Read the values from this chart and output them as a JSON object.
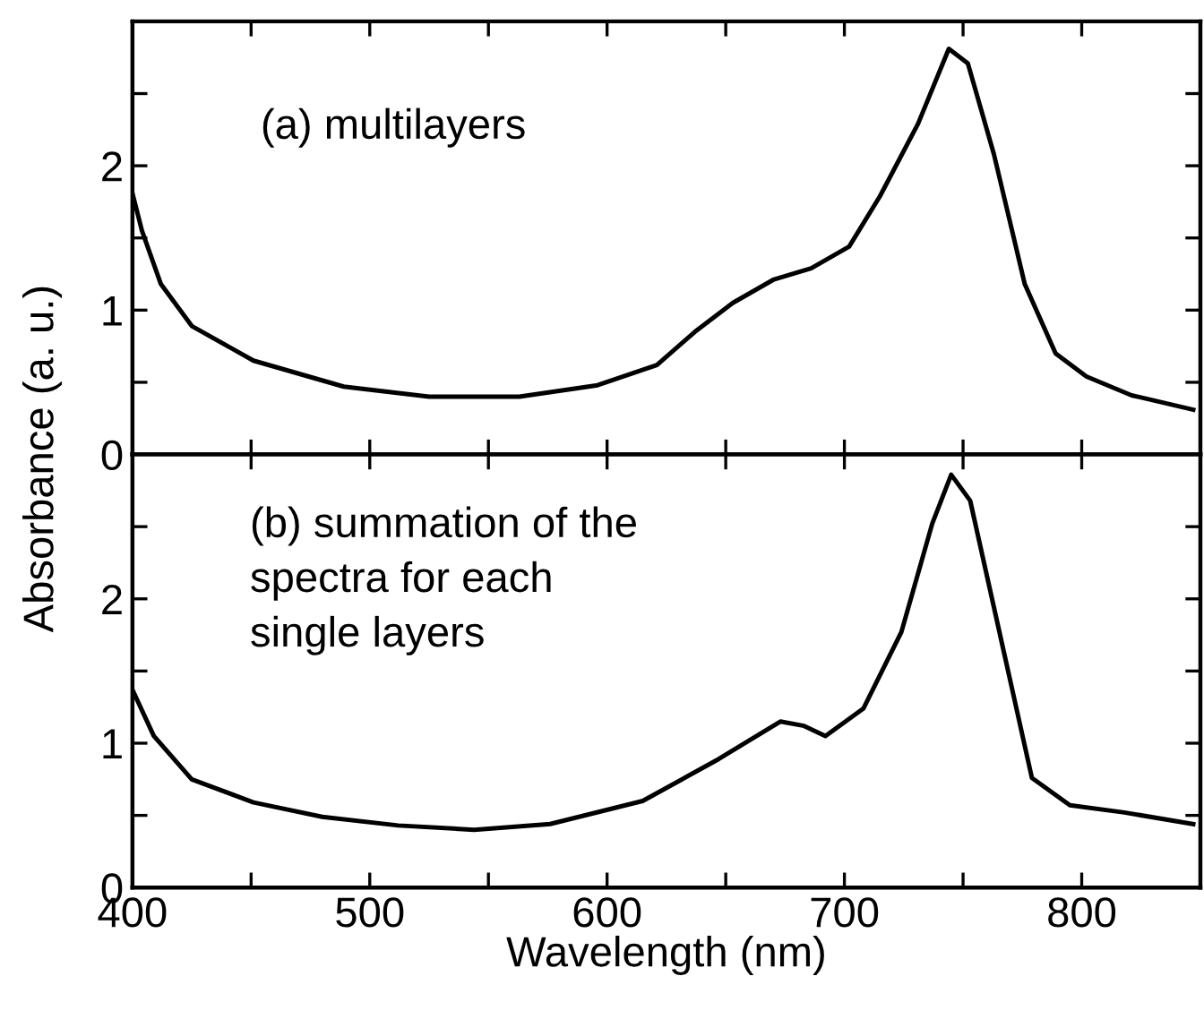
{
  "chart_data": [
    {
      "type": "line",
      "ylabel": "Absorbance (a. u.)",
      "annotations": [
        "(a) multilayers"
      ],
      "xlim": [
        400,
        850
      ],
      "xticks": [
        {
          "value": 400,
          "label": null
        },
        {
          "value": 450,
          "label": null
        },
        {
          "value": 500,
          "label": null
        },
        {
          "value": 550,
          "label": null
        },
        {
          "value": 600,
          "label": null
        },
        {
          "value": 650,
          "label": null
        },
        {
          "value": 700,
          "label": null
        },
        {
          "value": 750,
          "label": null
        },
        {
          "value": 800,
          "label": null
        }
      ],
      "ylim": [
        0,
        3
      ],
      "yticks": [
        0,
        {
          "value": 0.5,
          "label": null
        },
        1,
        {
          "value": 1.5,
          "label": null
        },
        2,
        {
          "value": 2.5,
          "label": null
        }
      ],
      "tick_labels": "y",
      "grid": false,
      "legend": false,
      "marker": "none",
      "line_style": "solid",
      "series": [
        {
          "color": "#000000",
          "x": [
            400,
            404,
            412,
            425,
            451,
            489,
            525,
            563,
            596,
            621,
            637,
            653,
            670,
            686,
            702,
            715,
            731,
            744,
            752,
            763,
            776,
            789,
            802,
            821,
            847
          ],
          "values": [
            1.81,
            1.55,
            1.18,
            0.89,
            0.65,
            0.47,
            0.4,
            0.4,
            0.48,
            0.62,
            0.85,
            1.05,
            1.21,
            1.29,
            1.44,
            1.79,
            2.29,
            2.81,
            2.71,
            2.08,
            1.18,
            0.7,
            0.54,
            0.41,
            0.31
          ]
        }
      ]
    },
    {
      "type": "line",
      "xlabel": "Wavelength (nm)",
      "annotations": [
        "(b) summation of the\nspectra for each\nsingle layers"
      ],
      "xlim": [
        400,
        850
      ],
      "xticks": [
        400,
        {
          "value": 450,
          "label": null
        },
        500,
        {
          "value": 550,
          "label": null
        },
        600,
        {
          "value": 650,
          "label": null
        },
        700,
        {
          "value": 750,
          "label": null
        },
        800
      ],
      "ylim": [
        0,
        3
      ],
      "yticks": [
        0,
        {
          "value": 0.5,
          "label": null
        },
        1,
        {
          "value": 1.5,
          "label": null
        },
        2,
        {
          "value": 2.5,
          "label": null
        }
      ],
      "grid": false,
      "legend": false,
      "marker": "none",
      "line_style": "solid",
      "series": [
        {
          "color": "#000000",
          "x": [
            400,
            409,
            425,
            451,
            480,
            512,
            544,
            576,
            615,
            647,
            673,
            683,
            692,
            708,
            724,
            737,
            745,
            753,
            766,
            779,
            795,
            818,
            847
          ],
          "values": [
            1.37,
            1.05,
            0.75,
            0.59,
            0.49,
            0.43,
            0.4,
            0.44,
            0.6,
            0.89,
            1.15,
            1.12,
            1.05,
            1.24,
            1.77,
            2.52,
            2.86,
            2.68,
            1.72,
            0.76,
            0.57,
            0.52,
            0.44
          ]
        }
      ]
    }
  ]
}
